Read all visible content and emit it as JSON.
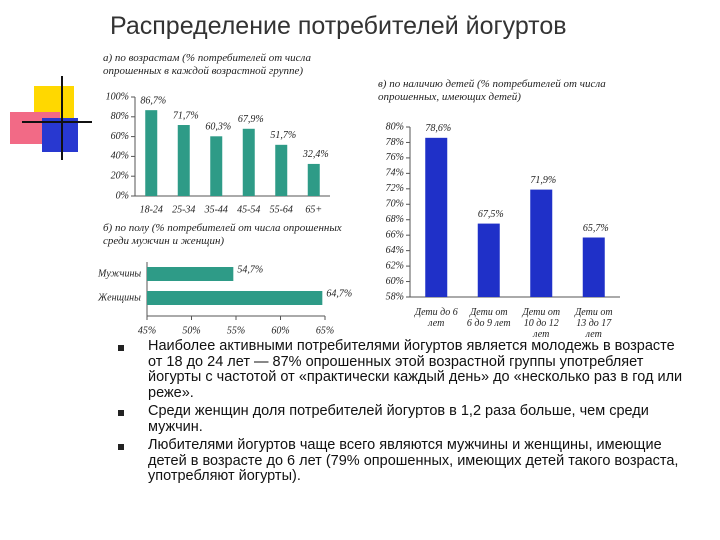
{
  "title": "Распределение потребителей йогуртов",
  "chart_data": [
    {
      "type": "bar",
      "subtitle": "а) по возрастам (% потребителей от числа опрошенных в каждой возрастной группе)",
      "categories": [
        "18-24",
        "25-34",
        "35-44",
        "45-54",
        "55-64",
        "65+"
      ],
      "values": [
        86.7,
        71.7,
        60.3,
        67.9,
        51.7,
        32.4
      ],
      "value_labels": [
        "86,7%",
        "71,7%",
        "60,3%",
        "67,9%",
        "51,7%",
        "32,4%"
      ],
      "color": "#2e9b87",
      "ylim": [
        0,
        100
      ],
      "yticks": [
        {
          "value": 0,
          "label": "0%"
        },
        {
          "value": 20,
          "label": "20%"
        },
        {
          "value": 40,
          "label": "40%"
        },
        {
          "value": 60,
          "label": "60%"
        },
        {
          "value": 80,
          "label": "80%"
        },
        {
          "value": 100,
          "label": "100%"
        }
      ]
    },
    {
      "type": "bar",
      "orientation": "horizontal",
      "subtitle": "б) по полу (% потребителей от числа опрошенных среди мужчин и женщин)",
      "categories": [
        "Мужчины",
        "Женщины"
      ],
      "values": [
        54.7,
        64.7
      ],
      "value_labels": [
        "54,7%",
        "64,7%"
      ],
      "color": "#2e9b87",
      "xlim": [
        45,
        65
      ],
      "xticks": [
        {
          "value": 45,
          "label": "45%"
        },
        {
          "value": 50,
          "label": "50%"
        },
        {
          "value": 55,
          "label": "55%"
        },
        {
          "value": 60,
          "label": "60%"
        },
        {
          "value": 65,
          "label": "65%"
        }
      ]
    },
    {
      "type": "bar",
      "subtitle": "в) по наличию детей (% потребителей от числа опрошенных, имеющих детей)",
      "categories": [
        "Дети до 6 лет",
        "Дети от 6 до 9 лет",
        "Дети от 10 до 12 лет",
        "Дети от 13 до 17 лет"
      ],
      "values": [
        78.6,
        67.5,
        71.9,
        65.7
      ],
      "value_labels": [
        "78,6%",
        "67,5%",
        "71,9%",
        "65,7%"
      ],
      "color": "#1f30c8",
      "ylim": [
        58,
        80
      ],
      "yticks": [
        {
          "value": 58,
          "label": "58%"
        },
        {
          "value": 60,
          "label": "60%"
        },
        {
          "value": 62,
          "label": "62%"
        },
        {
          "value": 64,
          "label": "64%"
        },
        {
          "value": 66,
          "label": "66%"
        },
        {
          "value": 68,
          "label": "68%"
        },
        {
          "value": 70,
          "label": "70%"
        },
        {
          "value": 72,
          "label": "72%"
        },
        {
          "value": 74,
          "label": "74%"
        },
        {
          "value": 76,
          "label": "76%"
        },
        {
          "value": 78,
          "label": "78%"
        },
        {
          "value": 80,
          "label": "80%"
        }
      ]
    }
  ],
  "bullets": [
    "Наиболее активными потребителями йогуртов является молодежь в возрасте от 18 до 24 лет — 87% опрошенных этой возрастной группы употребляет йогурты с частотой от «практически каждый день» до «несколько раз в год или реже».",
    "Среди женщин доля потребителей йогуртов в 1,2 раза больше, чем среди мужчин.",
    "Любителями йогуртов чаще всего являются мужчины и женщины, имеющие детей в возрасте до 6 лет (79% опрошенных, имеющих детей такого возраста, употребляют йогурты)."
  ]
}
